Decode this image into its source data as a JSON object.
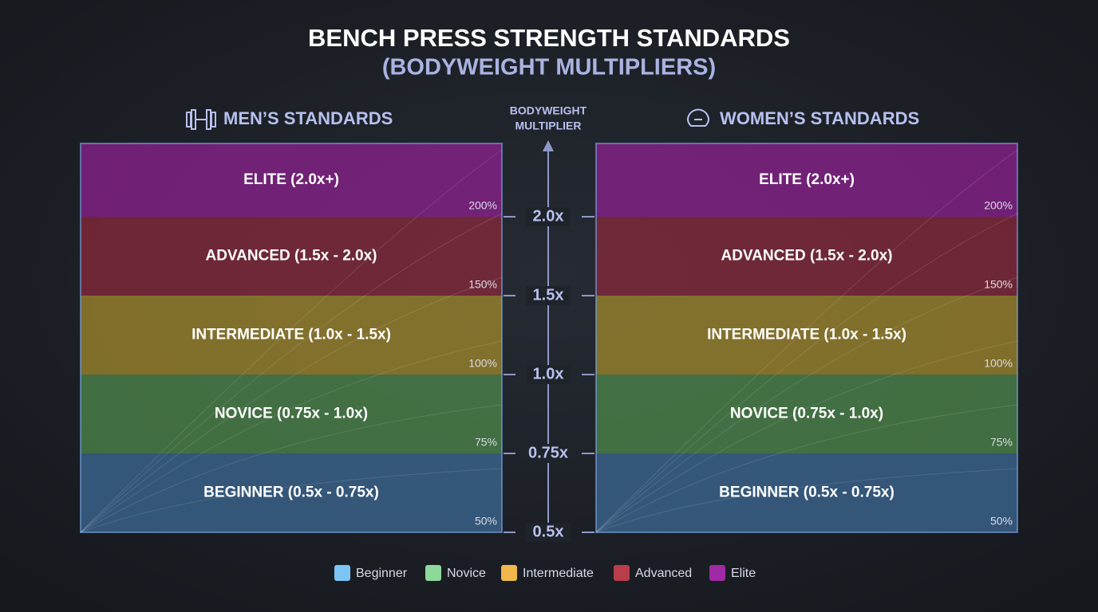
{
  "title": "BENCH PRESS STRENGTH STANDARDS",
  "subtitle": "(BODYWEIGHT MULTIPLIERS)",
  "axis": {
    "label_lines": [
      "BODYWEIGHT",
      "MULTIPLIER"
    ],
    "ticks": [
      "2.0x",
      "1.5x",
      "1.0x",
      "0.75x",
      "0.5x"
    ]
  },
  "panels": [
    {
      "title": "MEN’S STANDARDS",
      "bands": [
        {
          "label": "ELITE (2.0x+)",
          "percent": "200%",
          "color": "#8e2190"
        },
        {
          "label": "ADVANCED (1.5x - 2.0x)",
          "percent": "150%",
          "color": "#8a2a3c"
        },
        {
          "label": "INTERMEDIATE (1.0x - 1.5x)",
          "percent": "100%",
          "color": "#a38a2e"
        },
        {
          "label": "NOVICE (0.75x - 1.0x)",
          "percent": "75%",
          "color": "#4f8a4c"
        },
        {
          "label": "BEGINNER (0.5x - 0.75x)",
          "percent": "50%",
          "color": "#3d6a96"
        }
      ]
    },
    {
      "title": "WOMEN’S STANDARDS",
      "bands": [
        {
          "label": "ELITE (2.0x+)",
          "percent": "200%",
          "color": "#8e2190"
        },
        {
          "label": "ADVANCED (1.5x - 2.0x)",
          "percent": "150%",
          "color": "#8a2a3c"
        },
        {
          "label": "INTERMEDIATE (1.0x - 1.5x)",
          "percent": "100%",
          "color": "#a38a2e"
        },
        {
          "label": "NOVICE (0.75x - 1.0x)",
          "percent": "75%",
          "color": "#4f8a4c"
        },
        {
          "label": "BEGINNER (0.5x - 0.75x)",
          "percent": "50%",
          "color": "#3d6a96"
        }
      ]
    }
  ],
  "legend": [
    {
      "name": "Beginner",
      "color": "#7cc4f4"
    },
    {
      "name": "Novice",
      "color": "#8ed89a"
    },
    {
      "name": "Intermediate",
      "color": "#f0b84a"
    },
    {
      "name": "Advanced",
      "color": "#b83e4c"
    },
    {
      "name": "Elite",
      "color": "#a02aa6"
    }
  ]
}
